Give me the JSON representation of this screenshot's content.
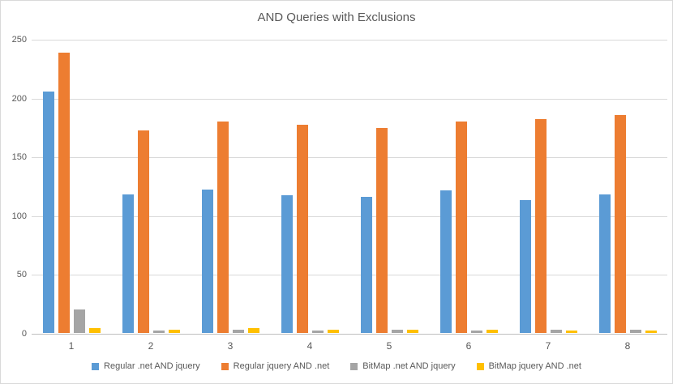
{
  "chart_data": {
    "type": "bar",
    "title": "AND Queries with Exclusions",
    "categories": [
      "1",
      "2",
      "3",
      "4",
      "5",
      "6",
      "7",
      "8"
    ],
    "series": [
      {
        "name": "Regular .net AND jquery",
        "color": "#5B9BD5",
        "values": [
          205,
          118,
          122,
          117,
          116,
          121,
          113,
          118
        ]
      },
      {
        "name": "Regular jquery AND .net",
        "color": "#ED7D31",
        "values": [
          238,
          172,
          180,
          177,
          174,
          180,
          182,
          185
        ]
      },
      {
        "name": "BitMap .net AND jquery",
        "color": "#A5A5A5",
        "values": [
          20,
          2,
          3,
          2,
          3,
          2,
          3,
          3
        ]
      },
      {
        "name": "BitMap jquery AND .net",
        "color": "#FFC000",
        "values": [
          4,
          3,
          4,
          3,
          3,
          3,
          2,
          2
        ]
      }
    ],
    "xlabel": "",
    "ylabel": "",
    "ylim": [
      0,
      250
    ],
    "yticks": [
      0,
      50,
      100,
      150,
      200,
      250
    ],
    "grid": true,
    "legend_position": "bottom"
  },
  "colors": {
    "background": "#FFFFFF",
    "border": "#D9D9D9",
    "gridline": "#D9D9D9",
    "axis_line": "#BFBFBF",
    "text": "#595959"
  }
}
